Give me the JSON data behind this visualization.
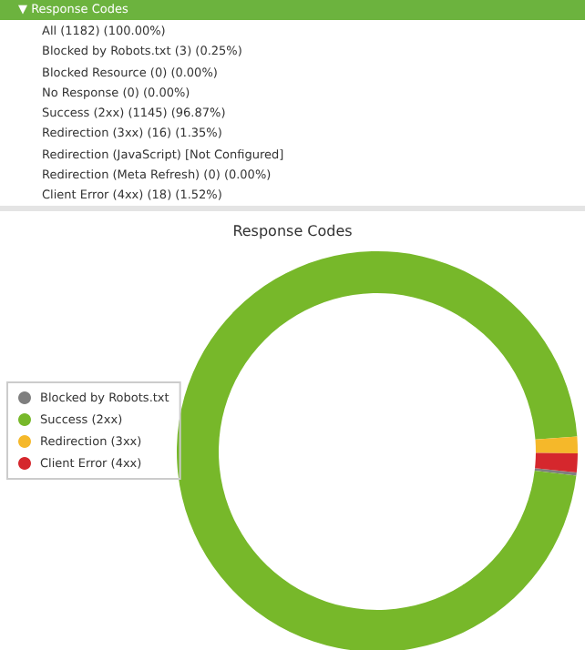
{
  "chart_data": {
    "type": "donut",
    "title": "Response Codes",
    "categories": [
      "Blocked by Robots.txt",
      "Success (2xx)",
      "Redirection (3xx)",
      "Client Error (4xx)"
    ],
    "values": [
      0.25,
      96.87,
      1.35,
      1.52
    ],
    "colors": [
      "#7f7f7f",
      "#77b82a",
      "#f5b82a",
      "#d5272d"
    ],
    "legend": "left",
    "annotations": [
      "▼ Response Codes",
      "All (1182) (100.00%)",
      "Blocked by Robots.txt (3) (0.25%)",
      "Blocked Resource (0) (0.00%)",
      "No Response (0) (0.00%)",
      "Success (2xx) (1145) (96.87%)",
      "Redirection (3xx) (16) (1.35%)",
      "Redirection (JavaScript) [Not Configured]",
      "Redirection (Meta Refresh) (0) (0.00%)",
      "Client Error (4xx) (18) (1.52%)"
    ]
  }
}
